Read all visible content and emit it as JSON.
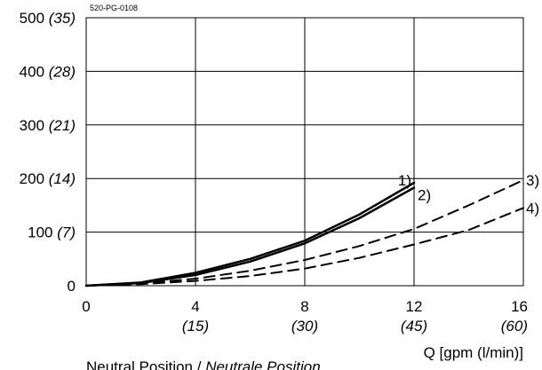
{
  "chart_data": {
    "type": "line",
    "figure_id": "520-PG-0108",
    "xlabel": "Q [gpm (l/min)]",
    "caption": {
      "plain": "Neutral Position / ",
      "italic": "Neutrale Position"
    },
    "xlim": [
      0,
      16
    ],
    "ylim": [
      0,
      500
    ],
    "grid": true,
    "x_ticks": [
      {
        "value": 0,
        "label": "0",
        "sub": ""
      },
      {
        "value": 4,
        "label": "4",
        "sub": "(15)"
      },
      {
        "value": 8,
        "label": "8",
        "sub": "(30)"
      },
      {
        "value": 12,
        "label": "12",
        "sub": "(45)"
      },
      {
        "value": 16,
        "label": "16",
        "sub": "(60)"
      }
    ],
    "y_ticks": [
      {
        "value": 0,
        "label": "0",
        "sub": ""
      },
      {
        "value": 100,
        "label": "100",
        "sub": "(7)"
      },
      {
        "value": 200,
        "label": "200",
        "sub": "(14)"
      },
      {
        "value": 300,
        "label": "300",
        "sub": "(21)"
      },
      {
        "value": 400,
        "label": "400",
        "sub": "(28)"
      },
      {
        "value": 500,
        "label": "500",
        "sub": "(35)"
      }
    ],
    "series": [
      {
        "name": "1)",
        "style": "solid",
        "x": [
          0,
          2,
          4,
          6,
          8,
          10,
          12
        ],
        "y": [
          0,
          6,
          24,
          50,
          84,
          133,
          192
        ]
      },
      {
        "name": "2)",
        "style": "solid",
        "x": [
          0,
          2,
          4,
          6,
          8,
          10,
          12
        ],
        "y": [
          0,
          5,
          20,
          45,
          79,
          126,
          183
        ]
      },
      {
        "name": "3)",
        "style": "dashed",
        "x": [
          0,
          2,
          4,
          6,
          8,
          10,
          12,
          14,
          16
        ],
        "y": [
          0,
          4,
          13,
          28,
          48,
          74,
          106,
          150,
          197
        ]
      },
      {
        "name": "4)",
        "style": "dashed",
        "x": [
          0,
          2,
          4,
          6,
          8,
          10,
          12,
          14,
          16
        ],
        "y": [
          0,
          3,
          9,
          18,
          32,
          52,
          77,
          104,
          145
        ]
      }
    ]
  }
}
